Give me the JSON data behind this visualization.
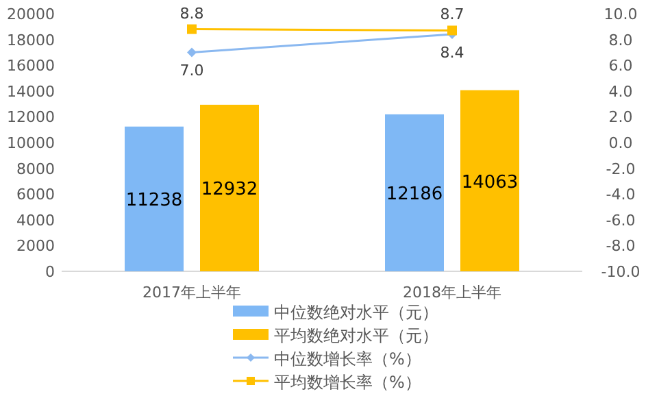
{
  "chart_data": {
    "type": "bar",
    "categories": [
      "2017年上半年",
      "2018年上半年"
    ],
    "series": [
      {
        "name": "中位数绝对水平（元）",
        "color": "#7fb8f5",
        "values": [
          11238,
          12186
        ]
      },
      {
        "name": "平均数绝对水平（元）",
        "color": "#ffc000",
        "values": [
          12932,
          14063
        ]
      },
      {
        "name": "中位数增长率（%）",
        "type": "line",
        "axis": "y2",
        "marker": "diamond",
        "color": "#8ab8f0",
        "values": [
          7.0,
          8.4
        ],
        "value_labels": [
          "7.0",
          "8.4"
        ]
      },
      {
        "name": "平均数增长率（%）",
        "type": "line",
        "axis": "y2",
        "marker": "square",
        "color": "#ffc000",
        "values": [
          8.8,
          8.7
        ],
        "value_labels": [
          "8.8",
          "8.7"
        ]
      }
    ],
    "ylim": [
      0,
      20000
    ],
    "yticks": [
      0,
      2000,
      4000,
      6000,
      8000,
      10000,
      12000,
      14000,
      16000,
      18000,
      20000
    ],
    "y2lim": [
      -10,
      10
    ],
    "y2ticks": [
      {
        "value": -10,
        "label": "-10.0"
      },
      {
        "value": -8,
        "label": "-8.0"
      },
      {
        "value": -6,
        "label": "-6.0"
      },
      {
        "value": -4,
        "label": "-4.0"
      },
      {
        "value": -2,
        "label": "-2.0"
      },
      {
        "value": 0,
        "label": "0.0"
      },
      {
        "value": 2,
        "label": "2.0"
      },
      {
        "value": 4,
        "label": "4.0"
      },
      {
        "value": 6,
        "label": "6.0"
      },
      {
        "value": 8,
        "label": "8.0"
      },
      {
        "value": 10,
        "label": "10.0"
      }
    ],
    "data_labels": true,
    "legend": "bottom",
    "grid": false
  }
}
